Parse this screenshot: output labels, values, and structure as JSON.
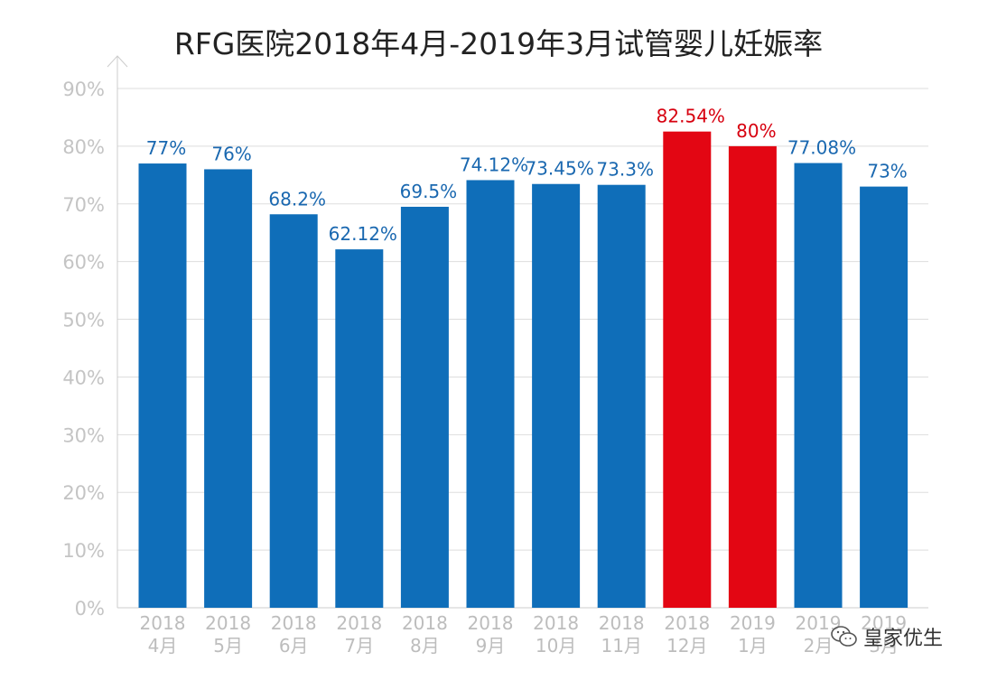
{
  "colors": {
    "bar_normal": "#0f6eb9",
    "bar_highlight": "#e30613",
    "label_normal": "#1a68b0",
    "label_highlight": "#d7000f",
    "grid": "#dddddd",
    "axis": "#cccccc"
  },
  "watermark": {
    "text": "皇家优生",
    "icon": "wechat-icon"
  },
  "chart_data": {
    "type": "bar",
    "title": "RFG医院2018年4月-2019年3月试管婴儿妊娠率",
    "xlabel": "",
    "ylabel": "",
    "ylim": [
      0,
      90
    ],
    "ytick_labels": [
      "0%",
      "10%",
      "20%",
      "30%",
      "40%",
      "50%",
      "60%",
      "70%",
      "80%",
      "90%"
    ],
    "grid": true,
    "categories": [
      [
        "2018",
        "4月"
      ],
      [
        "2018",
        "5月"
      ],
      [
        "2018",
        "6月"
      ],
      [
        "2018",
        "7月"
      ],
      [
        "2018",
        "8月"
      ],
      [
        "2018",
        "9月"
      ],
      [
        "2018",
        "10月"
      ],
      [
        "2018",
        "11月"
      ],
      [
        "2018",
        "12月"
      ],
      [
        "2019",
        "1月"
      ],
      [
        "2019",
        "2月"
      ],
      [
        "2019",
        "3月"
      ]
    ],
    "values": [
      77,
      76,
      68.2,
      62.12,
      69.5,
      74.12,
      73.45,
      73.3,
      82.54,
      80,
      77.08,
      73
    ],
    "data_labels": [
      "77%",
      "76%",
      "68.2%",
      "62.12%",
      "69.5%",
      "74.12%",
      "73.45%",
      "73.3%",
      "82.54%",
      "80%",
      "77.08%",
      "73%"
    ],
    "highlighted": [
      8,
      9
    ]
  }
}
